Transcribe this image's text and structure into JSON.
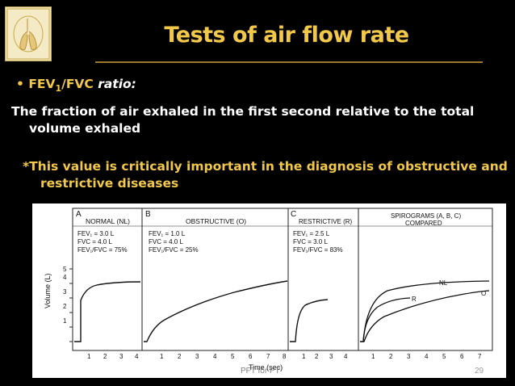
{
  "slide": {
    "title": "Tests of air flow rate",
    "bullet_marker": "•",
    "bullet_label": "FEV1/FVC",
    "bullet_label_main": "FEV",
    "bullet_label_sub": "1",
    "bullet_label_rest": "/FVC",
    "bullet_rest": "ratio:",
    "paragraph_line1": "The fraction of air exhaled in the first second relative to the total",
    "paragraph_line2": "volume exhaled",
    "note_line1": "*This value is critically important in the diagnosis of obstructive and",
    "note_line2": "restrictive diseases",
    "footer": "PFT for PT",
    "page_number": "29"
  },
  "figure": {
    "y_axis_label": "Volume (L)",
    "x_axis_label": "Time (sec)",
    "y_ticks": [
      "1",
      "2",
      "3",
      "4",
      "5"
    ],
    "panels": [
      {
        "letter": "A",
        "title": "NORMAL (NL)",
        "lines": [
          "FEV₁ = 3.0 L",
          "FVC = 4.0 L",
          "FEV₁/FVC = 75%"
        ],
        "x_ticks": [
          "1",
          "2",
          "3",
          "4"
        ]
      },
      {
        "letter": "B",
        "title": "OBSTRUCTIVE (O)",
        "lines": [
          "FEV₁ = 1.0 L",
          "FVC = 4.0 L",
          "FEV₁/FVC = 25%"
        ],
        "x_ticks": [
          "1",
          "2",
          "3",
          "4",
          "5",
          "6",
          "7",
          "8"
        ]
      },
      {
        "letter": "C",
        "title": "RESTRICTIVE (R)",
        "lines": [
          "FEV₁ = 2.5 L",
          "FVC = 3.0 L",
          "FEV₁/FVC = 83%"
        ],
        "x_ticks": [
          "1",
          "2",
          "3",
          "4"
        ]
      },
      {
        "letter": "",
        "title": "SPIROGRAMS (A, B, C)",
        "title2": "COMPARED",
        "lines": [],
        "x_ticks": [
          "1",
          "2",
          "3",
          "4",
          "5",
          "6",
          "7"
        ]
      }
    ],
    "curve_labels": {
      "nl": "NL",
      "r": "R",
      "o": "O"
    }
  }
}
